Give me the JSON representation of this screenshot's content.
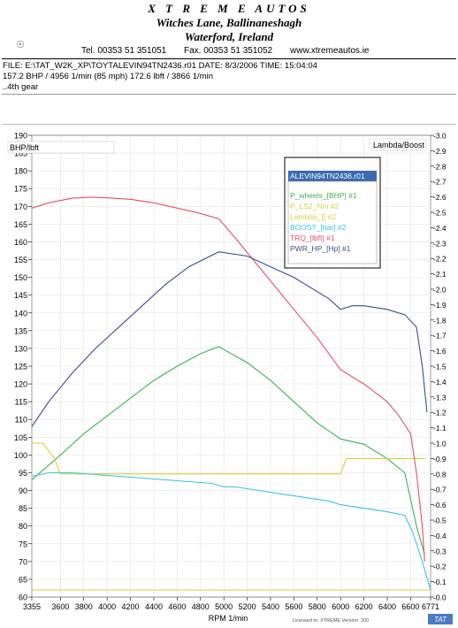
{
  "header": {
    "company": "X T R E M E   AUTOS",
    "address1": "Witches Lane, Ballinaneshagh",
    "address2": "Waterford, Ireland",
    "tel": "Tel. 00353 51 351051",
    "fax": "Fax. 00353 51 351052",
    "web": "www.xtremeautos.ie"
  },
  "info": {
    "line1": "FILE: E:\\TAT_W2K_XP\\TOYTALEVIN94TN2436.r01  DATE: 8/3/2006  TIME: 15:04:04",
    "line2": "157.2 BHP / 4956 1/min (85 mph)    172.6 lbft / 3866 1/min",
    "line3": "..4th gear"
  },
  "colors": {
    "power": "#3a4e8c",
    "wheels": "#3fb05a",
    "lambda": "#d6d23a",
    "boost": "#39c3dc",
    "torque": "#e0506a",
    "legend_header": "#3a6ab0"
  },
  "chart_data": {
    "type": "line",
    "left_axis_label": "BHP/lbft",
    "right_axis_label": "Lambda/Boost",
    "xlabel": "RPM  1/min",
    "footer_note": "Licensed to: XTREME  Version: 200",
    "brand": "TAT",
    "xlim": [
      3355,
      6771
    ],
    "ylim_left": [
      60,
      190
    ],
    "ylim_right": [
      0.0,
      -3.0
    ],
    "x_ticks": [
      "3355",
      "3600",
      "3800",
      "4000",
      "4200",
      "4400",
      "4600",
      "4800",
      "5000",
      "5200",
      "5400",
      "5600",
      "5800",
      "6000",
      "6200",
      "6400",
      "6600",
      "6771"
    ],
    "x_tick_values": [
      3355,
      3600,
      3800,
      4000,
      4200,
      4400,
      4600,
      4800,
      5000,
      5200,
      5400,
      5600,
      5800,
      6000,
      6200,
      6400,
      6600,
      6771
    ],
    "y_left_ticks": [
      "60",
      "65",
      "70",
      "75",
      "80",
      "85",
      "90",
      "95",
      "100",
      "105",
      "110",
      "115",
      "120",
      "125",
      "130",
      "135",
      "140",
      "145",
      "150",
      "155",
      "160",
      "165",
      "170",
      "175",
      "180",
      "185",
      "190"
    ],
    "y_right_ticks": [
      "-0.0",
      "-0.1",
      "-0.2",
      "-0.3",
      "-0.4",
      "-0.5",
      "-0.6",
      "-0.7",
      "-0.8",
      "-0.9",
      "-1.0",
      "-1.1",
      "-1.2",
      "-1.3",
      "-1.4",
      "-1.5",
      "-1.6",
      "-1.7",
      "-1.8",
      "-1.9",
      "-2.0",
      "-2.1",
      "-2.2",
      "-2.3",
      "-2.4",
      "-2.5",
      "-2.6",
      "-2.7",
      "-2.8",
      "-2.9",
      "-3.0"
    ],
    "legend_title": "ALEVIN94TN2436.r01",
    "series": [
      {
        "name": "P_wheels_[BHP] #1",
        "color": "#3fb05a",
        "axis": "left",
        "x": [
          3355,
          3600,
          3800,
          4000,
          4200,
          4400,
          4600,
          4800,
          4956,
          5200,
          5400,
          5600,
          5800,
          6000,
          6200,
          6400,
          6550,
          6650,
          6720
        ],
        "y": [
          93,
          100,
          106,
          111,
          116,
          121,
          125,
          128.5,
          130.5,
          126,
          121,
          115,
          109,
          104.5,
          103,
          99,
          95,
          80,
          72
        ]
      },
      {
        "name": "P_LS2_Nm #2",
        "color": "#d6d23a",
        "axis": "left",
        "x": [
          3355,
          6771
        ],
        "y": [
          62,
          62
        ]
      },
      {
        "name": "Lambda_[] #2",
        "color": "#d6d23a",
        "axis": "right",
        "x": [
          3355,
          3450,
          3550,
          3600,
          3800,
          4000,
          4200,
          4400,
          4600,
          4800,
          5000,
          5200,
          5400,
          5600,
          5800,
          5950,
          6000,
          6050,
          6200,
          6400,
          6600,
          6720
        ],
        "y": [
          -1.0,
          -1.0,
          -0.9,
          -0.8,
          -0.8,
          -0.8,
          -0.8,
          -0.8,
          -0.8,
          -0.8,
          -0.8,
          -0.8,
          -0.8,
          -0.8,
          -0.8,
          -0.8,
          -0.8,
          -0.9,
          -0.9,
          -0.9,
          -0.9,
          -0.9
        ]
      },
      {
        "name": "BOOST_[bar] #2",
        "color": "#39c3dc",
        "axis": "left",
        "x": [
          3355,
          3500,
          3700,
          3900,
          4100,
          4300,
          4500,
          4700,
          4900,
          5000,
          5100,
          5300,
          5500,
          5700,
          5900,
          6000,
          6200,
          6400,
          6550,
          6620,
          6700,
          6771
        ],
        "y": [
          94,
          95,
          95,
          94.5,
          94,
          93.5,
          93,
          92.5,
          92,
          91,
          91,
          90,
          89,
          88,
          87,
          86,
          85,
          84,
          83,
          78,
          70,
          62
        ]
      },
      {
        "name": "TRQ_[lbft] #1",
        "color": "#e0506a",
        "axis": "left",
        "x": [
          3355,
          3500,
          3700,
          3866,
          4000,
          4200,
          4400,
          4600,
          4800,
          4956,
          5100,
          5200,
          5400,
          5600,
          5800,
          6000,
          6200,
          6400,
          6500,
          6600,
          6650,
          6700,
          6720
        ],
        "y": [
          169.5,
          171,
          172.3,
          172.6,
          172.4,
          172,
          171,
          169.5,
          168,
          166.5,
          161,
          157,
          149,
          141,
          133,
          124,
          120,
          115,
          111,
          106,
          95,
          80,
          70
        ]
      },
      {
        "name": "PWR_HP_[Hp] #1",
        "color": "#3a4e8c",
        "axis": "left",
        "x": [
          3355,
          3500,
          3700,
          3900,
          4100,
          4300,
          4500,
          4700,
          4956,
          5200,
          5400,
          5600,
          5800,
          5900,
          6000,
          6100,
          6200,
          6400,
          6550,
          6650,
          6700,
          6740
        ],
        "y": [
          108,
          115,
          123,
          130,
          136,
          142,
          148,
          153,
          157.2,
          156,
          153,
          150,
          146,
          144,
          141,
          142,
          142,
          141,
          139.5,
          136,
          125,
          112
        ]
      }
    ]
  }
}
